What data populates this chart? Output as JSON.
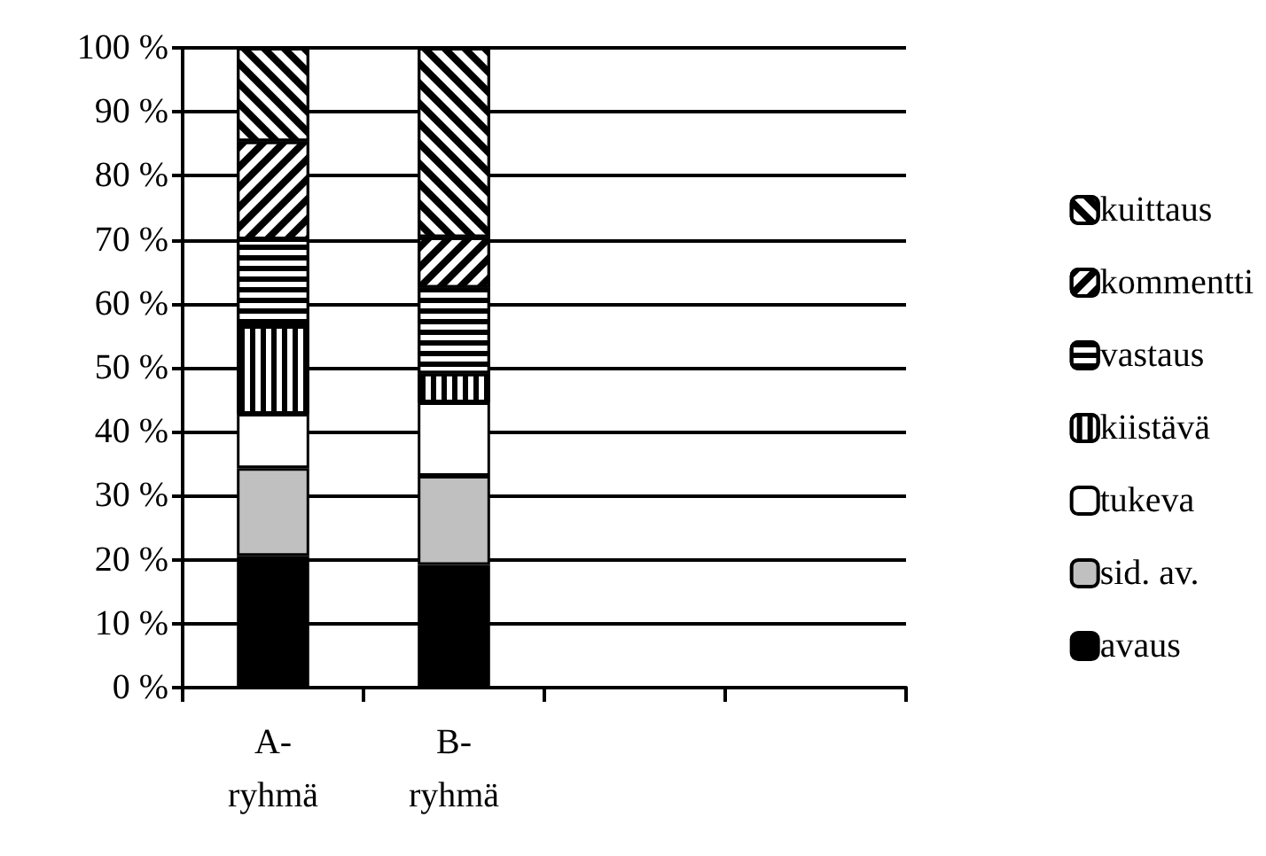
{
  "chart_data": {
    "type": "bar",
    "stacked": true,
    "categories": [
      "A-ryhmä",
      "B-ryhmä",
      null,
      null
    ],
    "series": [
      {
        "name": "avaus",
        "color": "#000000",
        "values": [
          20.6,
          19.2,
          null,
          null
        ]
      },
      {
        "name": "sid. av.",
        "color": "#c0c0c0",
        "values": [
          13.7,
          13.9,
          null,
          null
        ]
      },
      {
        "name": "tukeva",
        "color": "#ffffff",
        "values": [
          8.5,
          11.5,
          null,
          null
        ]
      },
      {
        "name": "kiistävä",
        "color": "#ffffff",
        "values": [
          13.7,
          4.5,
          null,
          null
        ]
      },
      {
        "name": "vastaus",
        "color": "#ffffff",
        "values": [
          13.6,
          13.4,
          null,
          null
        ]
      },
      {
        "name": "kommentti",
        "color": "#ffffff",
        "values": [
          15.3,
          7.9,
          null,
          null
        ]
      },
      {
        "name": "kuittaus",
        "color": "#ffffff",
        "values": [
          14.6,
          29.6,
          null,
          null
        ]
      }
    ],
    "ylim": [
      0,
      100
    ],
    "yticks": [
      {
        "value": 0,
        "label": "0 %"
      },
      {
        "value": 10,
        "label": "10 %"
      },
      {
        "value": 20,
        "label": "20 %"
      },
      {
        "value": 30,
        "label": "30 %"
      },
      {
        "value": 40,
        "label": "40 %"
      },
      {
        "value": 50,
        "label": "50 %"
      },
      {
        "value": 60,
        "label": "60 %"
      },
      {
        "value": 70,
        "label": "70 %"
      },
      {
        "value": 80,
        "label": "80 %"
      },
      {
        "value": 90,
        "label": "90 %"
      },
      {
        "value": 100,
        "label": "100 %"
      }
    ],
    "grid": "y",
    "legend": "right"
  }
}
